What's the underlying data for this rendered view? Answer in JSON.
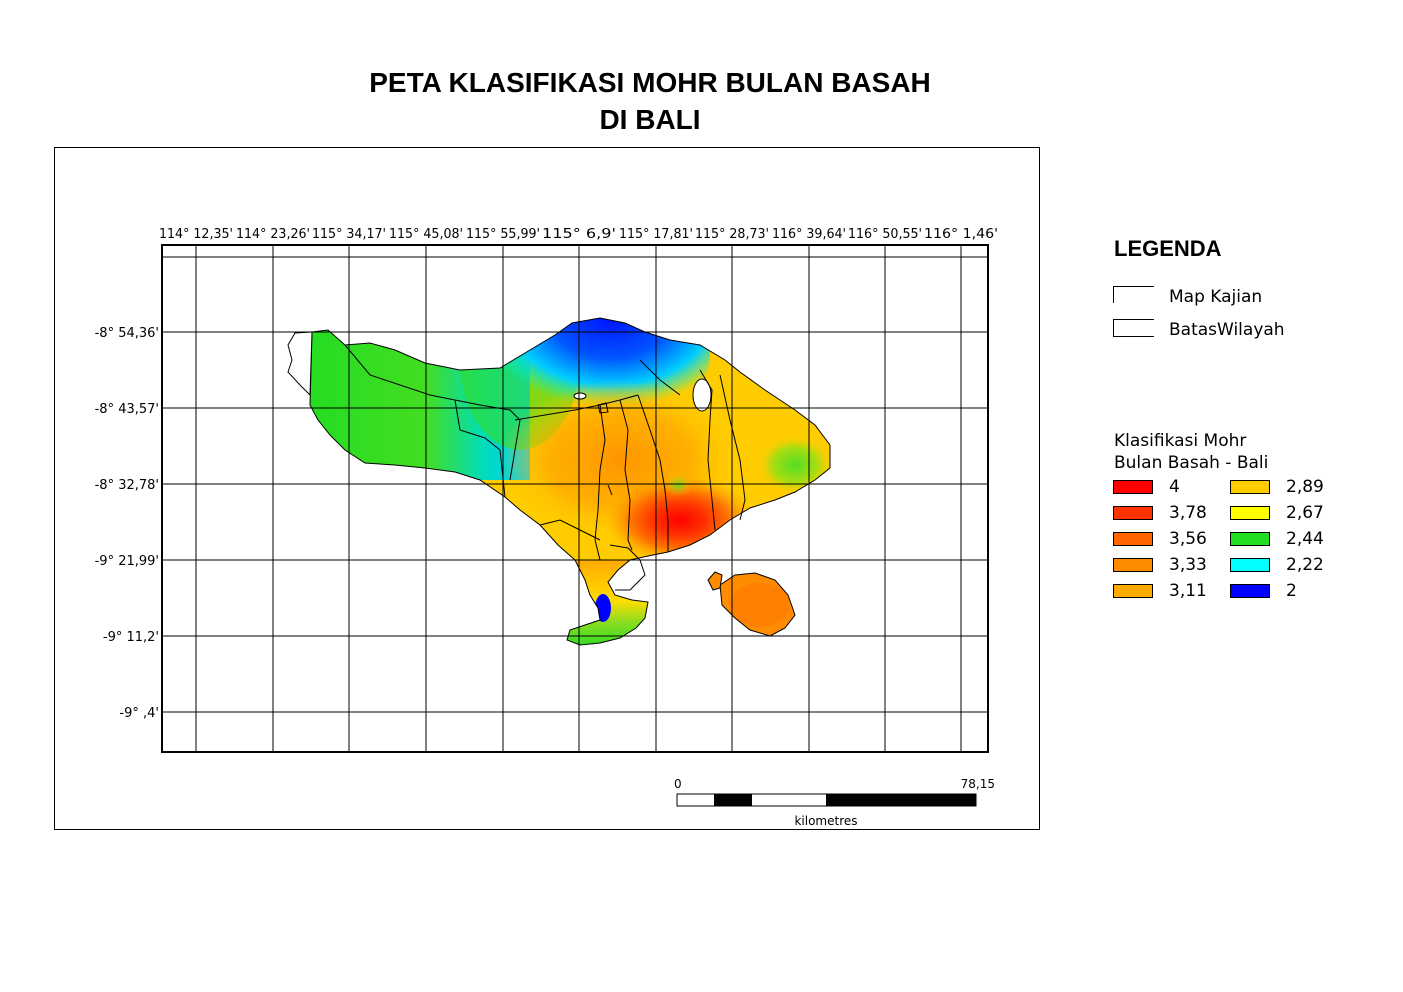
{
  "title": {
    "line1": "PETA KLASIFIKASI MOHR BULAN BASAH",
    "line2": "DI BALI"
  },
  "map": {
    "lon_labels": [
      "114° 12,35'",
      "114° 23,26'",
      "115° 34,17'",
      "115° 45,08'",
      "115° 55,99'",
      "115° 6,9'",
      "115° 17,81'",
      "115° 28,73'",
      "116° 39,64'",
      "116° 50,55'",
      "116° 1,46'"
    ],
    "lat_labels": [
      "-8° 54,36'",
      "-8° 43,57'",
      "-8° 32,78'",
      "-9° 21,99'",
      "-9° 11,2'",
      "-9° ,4'"
    ],
    "scalebar": {
      "start": "0",
      "end": "78,15",
      "unit": "kilometres"
    },
    "colors": {
      "sea": "#ffffff",
      "c4": "#ff0000",
      "c378": "#ff3300",
      "c356": "#ff6600",
      "c333": "#ff8c00",
      "c311": "#ffaa00",
      "c289": "#ffcc00",
      "c267": "#ffff00",
      "c244": "#22dd22",
      "c222": "#00ffff",
      "c2": "#0000ff"
    }
  },
  "legend": {
    "title": "LEGENDA",
    "items": [
      {
        "label": "Map Kajian"
      },
      {
        "label": "BatasWilayah"
      }
    ],
    "class_title_1": "Klasifikasi Mohr",
    "class_title_2": "Bulan Basah - Bali",
    "classes": [
      {
        "label": "4",
        "color": "#ff0000"
      },
      {
        "label": "3,78",
        "color": "#ff3300"
      },
      {
        "label": "3,56",
        "color": "#ff6600"
      },
      {
        "label": "3,33",
        "color": "#ff8c00"
      },
      {
        "label": "3,11",
        "color": "#ffaa00"
      },
      {
        "label": "2,89",
        "color": "#ffcc00"
      },
      {
        "label": "2,67",
        "color": "#ffff00"
      },
      {
        "label": "2,44",
        "color": "#22dd22"
      },
      {
        "label": "2,22",
        "color": "#00ffff"
      },
      {
        "label": "2",
        "color": "#0000ff"
      }
    ]
  }
}
